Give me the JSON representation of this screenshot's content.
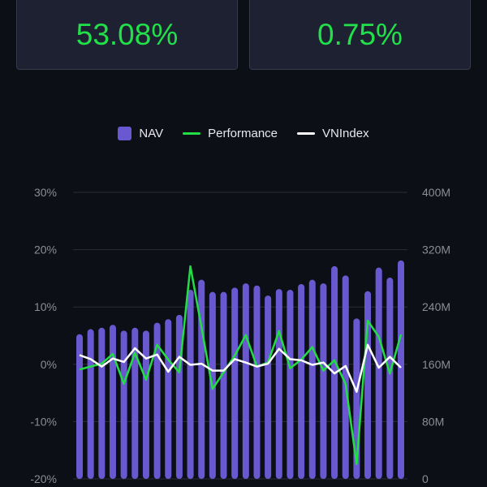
{
  "summary_cards": [
    {
      "value": "53.08%"
    },
    {
      "value": "0.75%"
    }
  ],
  "colors": {
    "nav": "#6a58d0",
    "performance": "#22dd44",
    "vnindex": "#ffffff",
    "card_value": "#22e04a"
  },
  "chart_data": {
    "type": "bar",
    "legend": [
      "NAV",
      "Performance",
      "VNIndex"
    ],
    "legend_position": "top-center",
    "grid": true,
    "left_axis": {
      "ticks": [
        "-20%",
        "-10%",
        "0%",
        "10%",
        "20%",
        "30%"
      ],
      "range": [
        -20,
        30
      ],
      "unit": "%"
    },
    "right_axis": {
      "ticks": [
        "0",
        "80M",
        "160M",
        "240M",
        "320M",
        "400M"
      ],
      "range": [
        0,
        400
      ],
      "unit": "M"
    },
    "series": [
      {
        "name": "NAV",
        "type": "bar",
        "axis": "right",
        "values": [
          202,
          209,
          211,
          215,
          207,
          211,
          207,
          218,
          223,
          229,
          264,
          278,
          261,
          261,
          267,
          273,
          270,
          256,
          265,
          264,
          272,
          278,
          273,
          297,
          284,
          224,
          262,
          295,
          281,
          305
        ]
      },
      {
        "name": "Performance",
        "type": "line",
        "axis": "left",
        "values": [
          -0.9,
          -0.4,
          0.1,
          1.8,
          -3.4,
          2.0,
          -2.7,
          3.4,
          0.8,
          -1.4,
          17.1,
          6.5,
          -4.3,
          -1.4,
          1.5,
          5.1,
          -0.4,
          0.3,
          5.8,
          -0.7,
          0.8,
          3.0,
          -1.1,
          0.7,
          -3.4,
          -17.4,
          7.6,
          4.8,
          -1.6,
          5.2
        ]
      },
      {
        "name": "VNIndex",
        "type": "line",
        "axis": "left",
        "values": [
          1.6,
          0.9,
          -0.4,
          1.0,
          0.4,
          2.8,
          1.0,
          1.7,
          -1.3,
          1.3,
          -0.1,
          0.1,
          -1.1,
          -1.1,
          0.9,
          0.3,
          -0.4,
          0.1,
          2.7,
          0.9,
          0.7,
          -0.1,
          0.3,
          -1.6,
          -0.3,
          -4.8,
          3.4,
          -0.6,
          1.3,
          -0.6
        ]
      }
    ]
  }
}
